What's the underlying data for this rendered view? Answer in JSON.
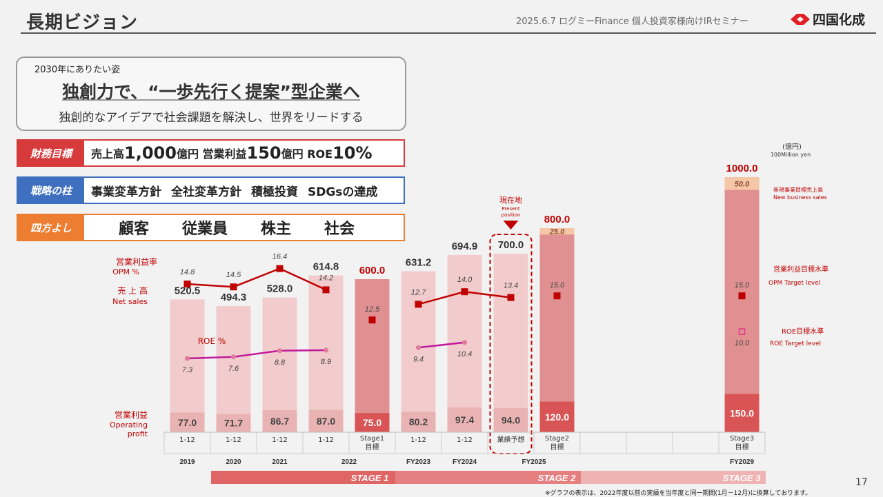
{
  "header": {
    "title": "長期ビジョン",
    "event": "2025.6.7 ログミーFinance 個人投資家様向けIRセミナー",
    "company": "四国化成",
    "brand_color": "#e01f26"
  },
  "vision": {
    "label": "2030年にありたい姿",
    "main": "独創力で、“一歩先行く提案”型企業へ",
    "sub": "独創的なアイデアで社会課題を解決し、世界をリードする"
  },
  "targets": {
    "financial": {
      "tag": "財務目標",
      "color": "#d63a3a",
      "parts": [
        {
          "text": "売上高",
          "big": false
        },
        {
          "text": "1,000",
          "big": true
        },
        {
          "text": "億円 営業利益",
          "big": false
        },
        {
          "text": "150",
          "big": true
        },
        {
          "text": "億円 ROE",
          "big": false
        },
        {
          "text": "10%",
          "big": true
        }
      ]
    },
    "strategy": {
      "tag": "戦略の柱",
      "color": "#3f6fbf",
      "items": [
        "事業変革方針",
        "全社変革方針",
        "積極投資",
        "SDGsの達成"
      ]
    },
    "yoshi": {
      "tag": "四方よし",
      "color": "#ed7d31",
      "items": [
        "顧客",
        "従業員",
        "株主",
        "社会"
      ]
    }
  },
  "chart_data": {
    "type": "bar",
    "unit_label": "(億円)",
    "unit_label_en": "100Million yen",
    "categories": [
      {
        "period": "1-12",
        "year": "2019"
      },
      {
        "period": "1-12",
        "year": "2020"
      },
      {
        "period": "1-12",
        "year": "2021"
      },
      {
        "period": "1-12",
        "year": "2022"
      },
      {
        "period": "Stage1 目標",
        "year": "2022"
      },
      {
        "period": "1-12",
        "year": "FY2023"
      },
      {
        "period": "1-12",
        "year": "FY2024"
      },
      {
        "period": "業績予想",
        "year": "FY2025"
      },
      {
        "period": "Stage2 目標",
        "year": "FY2025"
      },
      {
        "period": "",
        "year": ""
      },
      {
        "period": "",
        "year": ""
      },
      {
        "period": "",
        "year": ""
      },
      {
        "period": "Stage3 目標",
        "year": "FY2029"
      }
    ],
    "year_labels": [
      {
        "text": "2019",
        "from": 0,
        "to": 0
      },
      {
        "text": "2020",
        "from": 1,
        "to": 1
      },
      {
        "text": "2021",
        "from": 2,
        "to": 2
      },
      {
        "text": "2022",
        "from": 3,
        "to": 4
      },
      {
        "text": "FY2023",
        "from": 5,
        "to": 5
      },
      {
        "text": "FY2024",
        "from": 6,
        "to": 6
      },
      {
        "text": "FY2025",
        "from": 7,
        "to": 8
      },
      {
        "text": "FY2029",
        "from": 12,
        "to": 12
      }
    ],
    "net_sales": [
      520.5,
      494.3,
      528.0,
      614.8,
      600.0,
      631.2,
      694.9,
      700.0,
      800.0,
      null,
      null,
      null,
      1000.0
    ],
    "operating_profit": [
      77.0,
      71.7,
      86.7,
      87.0,
      75.0,
      80.2,
      97.4,
      94.0,
      120.0,
      null,
      null,
      null,
      150.0
    ],
    "new_business_sales": [
      null,
      null,
      null,
      null,
      null,
      null,
      null,
      null,
      25.0,
      null,
      null,
      null,
      50
    ],
    "opm_percent": [
      14.8,
      14.5,
      16.4,
      14.2,
      12.5,
      12.7,
      14.0,
      13.4,
      15.0,
      null,
      null,
      null,
      15.0
    ],
    "roe_percent": [
      7.3,
      7.6,
      8.8,
      8.9,
      null,
      9.4,
      10.4,
      null,
      null,
      null,
      null,
      null,
      10.0
    ],
    "bar_kind": [
      "actual",
      "actual",
      "actual",
      "actual",
      "target",
      "actual",
      "actual",
      "forecast",
      "target",
      "empty",
      "empty",
      "empty",
      "target"
    ],
    "labels": {
      "opm": "営業利益率",
      "opm_en": "OPM %",
      "sales": "売 上 高",
      "sales_en": "Net sales",
      "op": "営業利益",
      "op_en1": "Operating",
      "op_en2": "profit",
      "roe": "ROE %",
      "present": "現在地",
      "present_en1": "Present",
      "present_en2": "position",
      "new_biz": "新規事業目標売上高",
      "new_biz_en": "New business sales",
      "opm_target": "営業利益目標水準",
      "opm_target_en": "OPM Target level",
      "roe_target": "ROE目標水準",
      "roe_target_en": "ROE Target level"
    },
    "stages": [
      {
        "label": "STAGE 1",
        "from": 0,
        "to": 4,
        "color": "#e06666"
      },
      {
        "label": "STAGE 2",
        "from": 5,
        "to": 8,
        "color": "#e68080"
      },
      {
        "label": "STAGE 3",
        "from": 9,
        "to": 12,
        "color": "#f0b3b3"
      }
    ],
    "colors": {
      "actual_bar": "#f2cccc",
      "actual_op": "#eab3b3",
      "target_bar": "#e09090",
      "target_op": "#d95454",
      "new_biz": "#f5c6a8",
      "opm_line": "#c00000",
      "roe_line": "#c0199b"
    }
  },
  "footnote": "※グラフの表示は、2022年度以前の実績を当年度と同一期間(1月－12月)に換算しております。",
  "page_number": "17"
}
